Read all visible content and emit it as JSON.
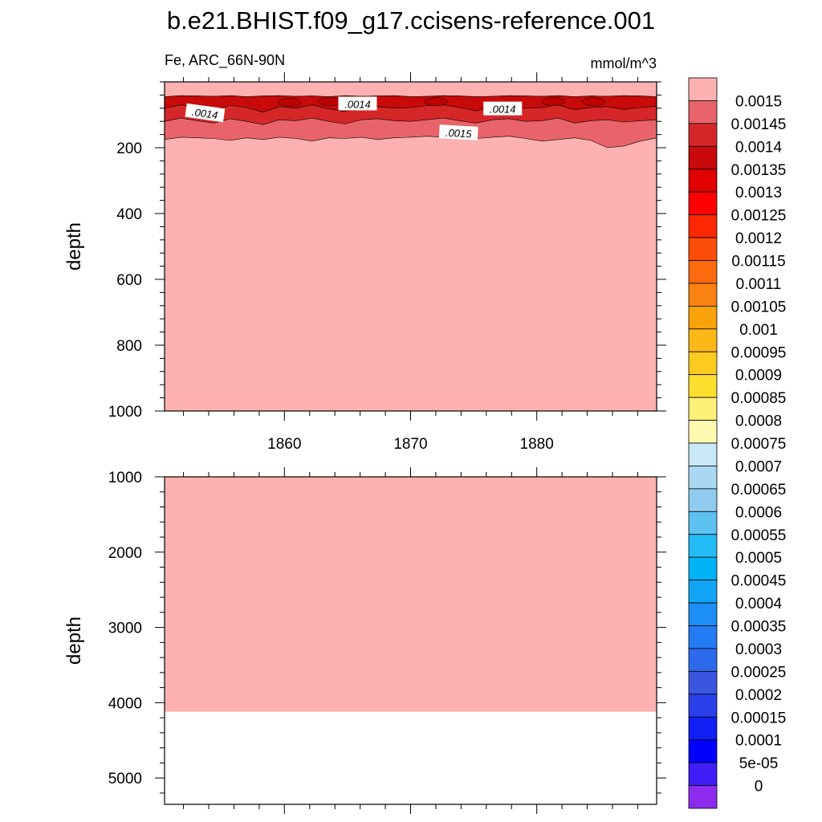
{
  "title": "b.e21.BHIST.f09_g17.ccisens-reference.001",
  "subtitle_left": "Fe, ARC_66N-90N",
  "subtitle_right": "mmol/m^3",
  "chart_data": [
    {
      "type": "heatmap",
      "panel": "upper",
      "ylabel": "depth",
      "xlim": [
        1850.5,
        1889.5
      ],
      "ylim": [
        1000,
        0
      ],
      "y_reversed": true,
      "x_ticks": [
        1860,
        1870,
        1880
      ],
      "x_tick_labels": [
        "1860",
        "1870",
        "1880"
      ],
      "y_ticks": [
        200,
        400,
        600,
        800,
        1000
      ],
      "y_tick_labels": [
        "200",
        "400",
        "600",
        "800",
        "1000"
      ],
      "contour_labels": [
        {
          "text": ".0014",
          "x": 1853.7,
          "depth": 95
        },
        {
          "text": ".0014",
          "x": 1865.8,
          "depth": 67
        },
        {
          "text": ".0014",
          "x": 1877.3,
          "depth": 82
        },
        {
          "text": ".0015",
          "x": 1873.8,
          "depth": 155
        }
      ],
      "layers": [
        {
          "level_min": 0.0015,
          "color": "#fdb1b1",
          "note": "background / deep water"
        },
        {
          "level_min": 0.00145,
          "color": "#e8646a",
          "top": [
            62,
            60,
            63,
            60,
            65,
            62,
            60,
            64,
            60,
            63,
            62,
            60,
            61,
            62,
            60,
            63,
            62,
            60,
            60,
            62,
            64,
            60,
            62,
            61,
            60,
            62,
            60,
            61,
            62,
            63,
            60
          ],
          "bottom": [
            175,
            168,
            170,
            172,
            178,
            170,
            175,
            168,
            172,
            180,
            170,
            172,
            168,
            175,
            170,
            168,
            165,
            168,
            170,
            172,
            168,
            165,
            172,
            180,
            175,
            170,
            178,
            200,
            195,
            180,
            170
          ]
        },
        {
          "level_min": 0.0014,
          "color": "#d62728",
          "top": [
            45,
            42,
            43,
            44,
            42,
            45,
            43,
            42,
            44,
            43,
            45,
            42,
            44,
            43,
            42,
            45,
            44,
            42,
            43,
            45,
            44,
            42,
            43,
            44,
            42,
            45,
            43,
            44,
            42,
            43,
            45
          ],
          "bottom": [
            120,
            110,
            118,
            125,
            112,
            120,
            130,
            115,
            118,
            110,
            120,
            128,
            115,
            112,
            118,
            120,
            115,
            110,
            118,
            125,
            115,
            112,
            120,
            118,
            110,
            125,
            118,
            115,
            122,
            118,
            115
          ]
        },
        {
          "level_min": 0.00135,
          "color": "#c80a0a",
          "top": [
            45,
            42,
            43,
            44,
            42,
            45,
            43,
            42,
            44,
            43,
            45,
            42,
            44,
            43,
            42,
            45,
            44,
            42,
            43,
            45,
            44,
            42,
            43,
            44,
            42,
            45,
            43,
            44,
            42,
            43,
            45
          ],
          "bottom": [
            80,
            70,
            76,
            85,
            72,
            78,
            92,
            75,
            80,
            70,
            82,
            90,
            72,
            75,
            80,
            78,
            72,
            70,
            78,
            88,
            75,
            72,
            80,
            78,
            70,
            85,
            78,
            75,
            84,
            78,
            74
          ]
        }
      ]
    },
    {
      "type": "heatmap",
      "panel": "lower",
      "ylabel": "depth",
      "xlim": [
        1850.5,
        1889.5
      ],
      "ylim": [
        5350,
        1000
      ],
      "y_reversed": true,
      "y_ticks": [
        1000,
        2000,
        3000,
        4000,
        5000
      ],
      "y_tick_labels": [
        "1000",
        "2000",
        "3000",
        "4000",
        "5000"
      ],
      "fill_color": "#fdb1b1",
      "fill_bottom_depth": 4120,
      "below_fill": "missing / ocean floor (white)"
    },
    {
      "type": "colorbar",
      "levels": [
        "0.0015",
        "0.00145",
        "0.0014",
        "0.00135",
        "0.0013",
        "0.00125",
        "0.0012",
        "0.00115",
        "0.0011",
        "0.00105",
        "0.001",
        "0.00095",
        "0.0009",
        "0.00085",
        "0.0008",
        "0.00075",
        "0.0007",
        "0.00065",
        "0.0006",
        "0.00055",
        "0.0005",
        "0.00045",
        "0.0004",
        "0.00035",
        "0.0003",
        "0.00025",
        "0.0002",
        "0.00015",
        "0.0001",
        "5e-05",
        "0"
      ],
      "colors": [
        "#fdb1b1",
        "#e8646a",
        "#d62728",
        "#c80a0a",
        "#e00000",
        "#ff0000",
        "#ff2600",
        "#fc4e0a",
        "#fb6a0e",
        "#fa8210",
        "#f9a20a",
        "#fbb818",
        "#fccb20",
        "#fde02f",
        "#fff07a",
        "#fffab0",
        "#c8e8f6",
        "#a9d8f0",
        "#8ecbee",
        "#5ec2f1",
        "#22bdf6",
        "#00b3f7",
        "#12a4f5",
        "#1c8ef6",
        "#237cf3",
        "#2d6aeb",
        "#3a55de",
        "#2b40ea",
        "#1020f4",
        "#0000ff",
        "#3f1ef8",
        "#8b2cef"
      ],
      "orientation": "vertical",
      "placement": "right"
    }
  ]
}
